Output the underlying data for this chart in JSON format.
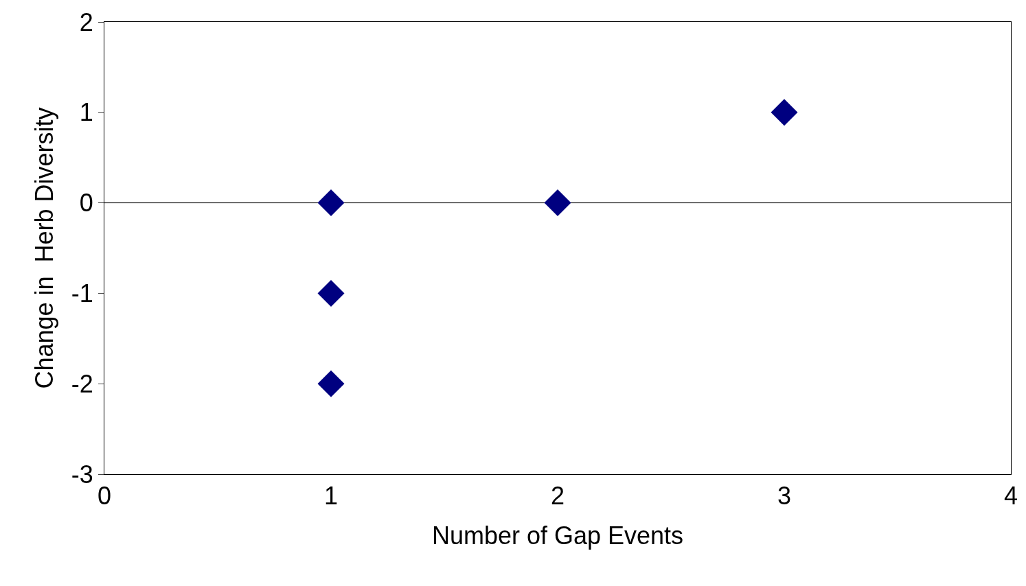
{
  "chart_data": {
    "type": "scatter",
    "xlabel": "Number of Gap Events",
    "ylabel": "Change in  Herb Diversity",
    "x": [
      1,
      1,
      1,
      2,
      3
    ],
    "series": [
      {
        "color": "#000080",
        "values": [
          0,
          -1,
          -2,
          0,
          1
        ]
      }
    ],
    "marker": "diamond",
    "xlim": [
      0,
      4
    ],
    "xticks": [
      0,
      1,
      2,
      3,
      4
    ],
    "ylim": [
      -3,
      2
    ],
    "yticks": [
      -3,
      -2,
      -1,
      0,
      1,
      2
    ],
    "ref_lines": [
      {
        "axis": "y",
        "value": 0,
        "color": "#000000",
        "line_style": "solid"
      }
    ],
    "grid": false
  }
}
